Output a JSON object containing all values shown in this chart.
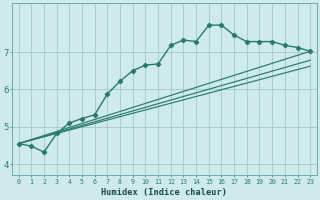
{
  "xlabel": "Humidex (Indice chaleur)",
  "background_color": "#ceeaea",
  "grid_color": "#a0c8c8",
  "line_color": "#2a7a6a",
  "xlim": [
    -0.5,
    23.5
  ],
  "ylim": [
    3.7,
    8.3
  ],
  "yticks": [
    4,
    5,
    6,
    7
  ],
  "xticks": [
    0,
    1,
    2,
    3,
    4,
    5,
    6,
    7,
    8,
    9,
    10,
    11,
    12,
    13,
    14,
    15,
    16,
    17,
    18,
    19,
    20,
    21,
    22,
    23
  ],
  "curve_x": [
    0,
    1,
    2,
    3,
    4,
    5,
    6,
    7,
    8,
    9,
    10,
    11,
    12,
    13,
    14,
    15,
    16,
    17,
    18,
    19,
    20,
    21,
    22,
    23
  ],
  "curve_y": [
    4.55,
    4.48,
    4.32,
    4.82,
    5.1,
    5.22,
    5.32,
    5.88,
    6.22,
    6.5,
    6.65,
    6.68,
    7.18,
    7.32,
    7.28,
    7.72,
    7.72,
    7.45,
    7.28,
    7.28,
    7.28,
    7.18,
    7.12,
    7.02
  ],
  "line1_start_x": 0,
  "line1_start_y": 4.55,
  "line1_end_x": 23,
  "line1_end_y": 7.02,
  "line2_start_x": 0,
  "line2_start_y": 4.55,
  "line2_end_x": 23,
  "line2_end_y": 6.78,
  "line3_start_x": 0,
  "line3_start_y": 4.55,
  "line3_end_x": 23,
  "line3_end_y": 6.62
}
